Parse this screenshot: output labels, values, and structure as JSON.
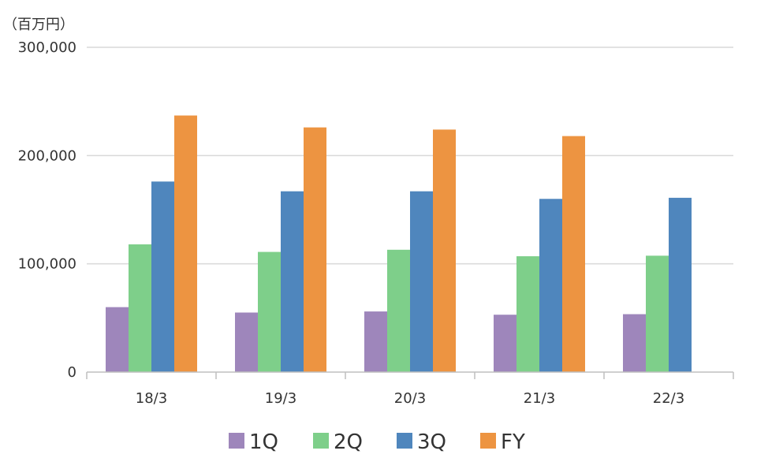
{
  "chart_data": {
    "type": "bar",
    "unit_label": "（百万円）",
    "categories": [
      "18/3",
      "19/3",
      "20/3",
      "21/3",
      "22/3"
    ],
    "series": [
      {
        "name": "1Q",
        "color": "#9e86bb",
        "values": [
          60000,
          55000,
          56000,
          53000,
          53500
        ]
      },
      {
        "name": "2Q",
        "color": "#7ecf8a",
        "values": [
          118000,
          111000,
          113000,
          107000,
          107500
        ]
      },
      {
        "name": "3Q",
        "color": "#4f86bd",
        "values": [
          176000,
          167000,
          167000,
          160000,
          161000
        ]
      },
      {
        "name": "FY",
        "color": "#ed9441",
        "values": [
          237000,
          226000,
          224000,
          218000,
          null
        ]
      }
    ],
    "ylim": [
      0,
      300000
    ],
    "yticks": [
      "0",
      "100,000",
      "200,000",
      "300,000"
    ],
    "ytick_values": [
      0,
      100000,
      200000,
      300000
    ],
    "grid": true,
    "legend_position": "bottom"
  }
}
